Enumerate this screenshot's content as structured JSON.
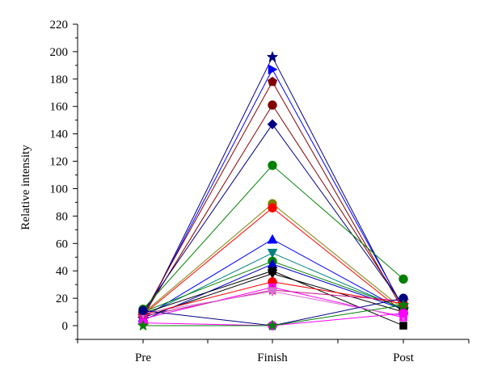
{
  "chart_data": {
    "type": "line",
    "ylabel": "Relative intensity",
    "xlabel": "",
    "categories": [
      "Pre",
      "Finish",
      "Post"
    ],
    "ylim": [
      -10,
      220
    ],
    "yticks": [
      0,
      20,
      40,
      60,
      80,
      100,
      120,
      140,
      160,
      180,
      200,
      220
    ],
    "grid": false,
    "series": [
      {
        "values": [
          5,
          196,
          12
        ],
        "color": "#000080",
        "marker": "star"
      },
      {
        "values": [
          6,
          187,
          13
        ],
        "color": "#0000ff",
        "marker": "triangle-right"
      },
      {
        "values": [
          8,
          178,
          11
        ],
        "color": "#800000",
        "marker": "pentagon"
      },
      {
        "values": [
          7,
          161,
          14
        ],
        "color": "#800000",
        "marker": "circle"
      },
      {
        "values": [
          10,
          147,
          15
        ],
        "color": "#000080",
        "marker": "diamond"
      },
      {
        "values": [
          12,
          117,
          34
        ],
        "color": "#008000",
        "marker": "circle"
      },
      {
        "values": [
          9,
          89,
          12
        ],
        "color": "#808000",
        "marker": "circle"
      },
      {
        "values": [
          8,
          86,
          10
        ],
        "color": "#ff0000",
        "marker": "circle"
      },
      {
        "values": [
          6,
          63,
          11
        ],
        "color": "#0000ff",
        "marker": "triangle-up"
      },
      {
        "values": [
          7,
          53,
          12
        ],
        "color": "#008080",
        "marker": "triangle-down"
      },
      {
        "values": [
          10,
          47,
          13
        ],
        "color": "#008000",
        "marker": "circle"
      },
      {
        "values": [
          4,
          45,
          12
        ],
        "color": "#0000cd",
        "marker": "triangle-up"
      },
      {
        "values": [
          9,
          40,
          0
        ],
        "color": "#000000",
        "marker": "square"
      },
      {
        "values": [
          6,
          38,
          10
        ],
        "color": "#000000",
        "marker": "triangle-down"
      },
      {
        "values": [
          8,
          32,
          16
        ],
        "color": "#ff0000",
        "marker": "circle"
      },
      {
        "values": [
          5,
          28,
          6
        ],
        "color": "#ff00ff",
        "marker": "square"
      },
      {
        "values": [
          7,
          26,
          18
        ],
        "color": "#c71585",
        "marker": "star"
      },
      {
        "values": [
          9,
          25,
          7
        ],
        "color": "#da70d6",
        "marker": "triangle-down"
      },
      {
        "values": [
          11,
          0,
          20
        ],
        "color": "#000080",
        "marker": "circle"
      },
      {
        "values": [
          2,
          0,
          9
        ],
        "color": "#ff00ff",
        "marker": "circle"
      },
      {
        "values": [
          0,
          0,
          15
        ],
        "color": "#008000",
        "marker": "star"
      }
    ]
  }
}
